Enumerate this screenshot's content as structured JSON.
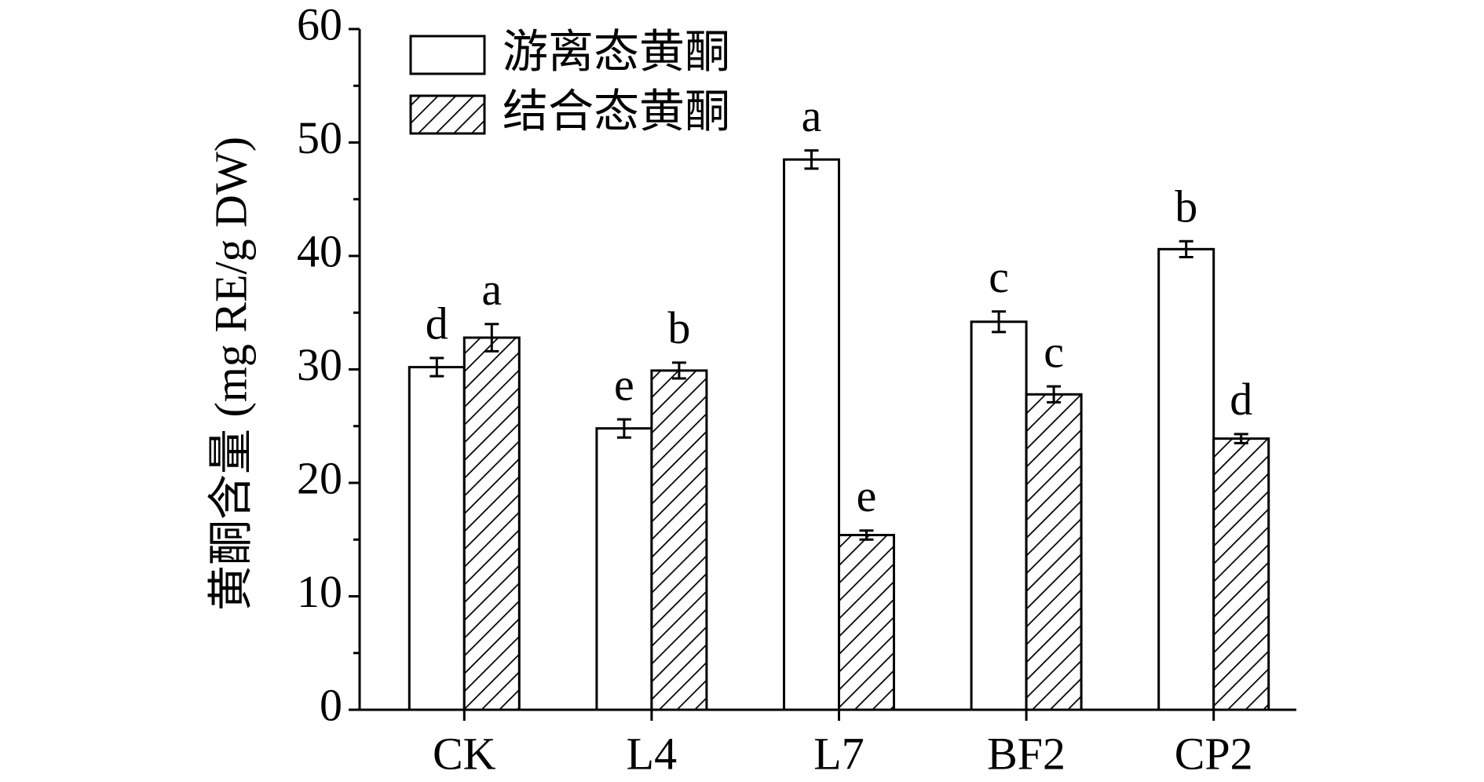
{
  "chart_data": {
    "type": "bar",
    "y_label": "黄酮含量 (mg RE/g DW)",
    "categories": [
      "CK",
      "L4",
      "L7",
      "BF2",
      "CP2"
    ],
    "series": [
      {
        "name": "游离态黄酮",
        "color": "#ffffff",
        "hatch": false,
        "values": [
          30.2,
          24.8,
          48.5,
          34.2,
          40.6
        ],
        "errors": [
          0.8,
          0.8,
          0.8,
          0.9,
          0.7
        ],
        "letters": [
          "d",
          "e",
          "a",
          "c",
          "b"
        ]
      },
      {
        "name": "结合态黄酮",
        "color": "#ffffff",
        "hatch": true,
        "values": [
          32.8,
          29.9,
          15.4,
          27.8,
          23.9
        ],
        "errors": [
          1.2,
          0.7,
          0.4,
          0.7,
          0.4
        ],
        "letters": [
          "a",
          "b",
          "e",
          "c",
          "d"
        ]
      }
    ],
    "ylim": [
      0,
      60
    ],
    "yticks": [
      0,
      10,
      20,
      30,
      40,
      50,
      60
    ],
    "yminor_ticks": [
      5,
      15,
      25,
      35,
      45,
      55
    ]
  }
}
